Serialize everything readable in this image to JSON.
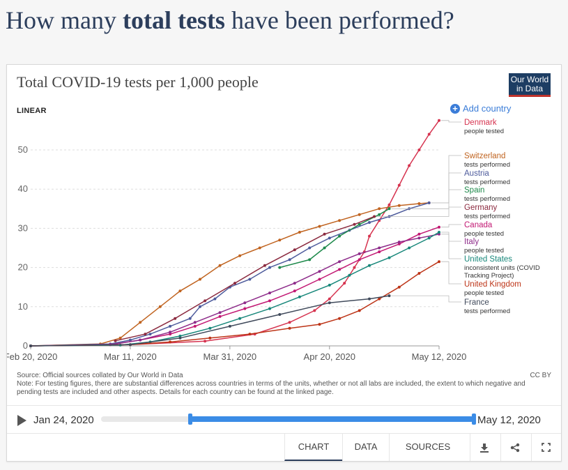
{
  "page": {
    "title_pre": "How many ",
    "title_bold": "total tests",
    "title_post": " have been performed?"
  },
  "chart_header": {
    "title": "Total COVID-19 tests per 1,000 people",
    "logo_line1": "Our World",
    "logo_line2": "in Data",
    "scale_label": "LINEAR",
    "add_country": "Add country"
  },
  "chart_data": {
    "type": "line",
    "title": "Total COVID-19 tests per 1,000 people",
    "x_axis_ticks": [
      "Feb 20, 2020",
      "Mar 11, 2020",
      "Mar 31, 2020",
      "Apr 20, 2020",
      "May 12, 2020"
    ],
    "y_axis_ticks": [
      "0",
      "10",
      "20",
      "30",
      "40",
      "50"
    ],
    "ylim": [
      0,
      58
    ],
    "series": [
      {
        "name": "Denmark",
        "unit": "people tested",
        "color": "#d6334f",
        "points": [
          [
            0,
            0
          ],
          [
            20,
            0.3
          ],
          [
            35,
            1.2
          ],
          [
            45,
            3
          ],
          [
            52,
            6
          ],
          [
            57,
            9
          ],
          [
            60,
            12
          ],
          [
            63,
            16
          ],
          [
            65,
            20
          ],
          [
            67,
            24
          ],
          [
            68,
            28
          ],
          [
            70,
            32
          ],
          [
            72,
            36
          ],
          [
            74,
            41
          ],
          [
            76,
            46
          ],
          [
            78,
            50
          ],
          [
            80,
            54
          ],
          [
            82,
            57.5
          ]
        ]
      },
      {
        "name": "Switzerland",
        "unit": "tests performed",
        "color": "#c0631f",
        "points": [
          [
            0,
            0
          ],
          [
            14,
            0.5
          ],
          [
            18,
            2
          ],
          [
            22,
            6
          ],
          [
            26,
            10
          ],
          [
            30,
            14
          ],
          [
            34,
            17
          ],
          [
            38,
            20.5
          ],
          [
            42,
            23
          ],
          [
            46,
            25
          ],
          [
            50,
            27
          ],
          [
            54,
            29
          ],
          [
            58,
            30.5
          ],
          [
            62,
            32
          ],
          [
            66,
            33.5
          ],
          [
            70,
            35
          ],
          [
            74,
            35.8
          ],
          [
            78,
            36.3
          ],
          [
            80,
            36.5
          ]
        ]
      },
      {
        "name": "Austria",
        "unit": "tests performed",
        "color": "#4d5b9c",
        "points": [
          [
            0,
            0
          ],
          [
            16,
            0.5
          ],
          [
            20,
            1.5
          ],
          [
            24,
            3
          ],
          [
            28,
            5
          ],
          [
            32,
            7
          ],
          [
            34,
            10
          ],
          [
            37,
            12
          ],
          [
            40,
            15
          ],
          [
            44,
            17
          ],
          [
            48,
            20
          ],
          [
            52,
            22
          ],
          [
            56,
            25
          ],
          [
            60,
            27.5
          ],
          [
            64,
            29.5
          ],
          [
            68,
            31.5
          ],
          [
            72,
            33
          ],
          [
            76,
            35
          ],
          [
            80,
            36.5
          ]
        ]
      },
      {
        "name": "Spain",
        "unit": "tests performed",
        "color": "#1f8a4c",
        "points": [
          [
            50,
            20
          ],
          [
            56,
            22
          ],
          [
            59,
            25
          ],
          [
            62,
            28
          ],
          [
            66,
            31
          ],
          [
            70,
            33.5
          ],
          [
            72,
            35
          ]
        ]
      },
      {
        "name": "Germany",
        "unit": "tests performed",
        "color": "#8b2a3f",
        "points": [
          [
            17,
            1.3
          ],
          [
            23,
            3
          ],
          [
            29,
            7
          ],
          [
            35,
            11.5
          ],
          [
            41,
            16
          ],
          [
            47,
            20.5
          ],
          [
            53,
            24.5
          ],
          [
            59,
            28.5
          ],
          [
            65,
            31
          ],
          [
            69,
            33
          ]
        ]
      },
      {
        "name": "Canada",
        "unit": "people tested",
        "color": "#c21873",
        "points": [
          [
            0,
            0
          ],
          [
            16,
            0.3
          ],
          [
            22,
            1.5
          ],
          [
            28,
            3
          ],
          [
            33,
            5
          ],
          [
            38,
            7.5
          ],
          [
            43,
            9.5
          ],
          [
            48,
            11.5
          ],
          [
            53,
            14
          ],
          [
            58,
            17
          ],
          [
            62,
            19.5
          ],
          [
            66,
            22
          ],
          [
            70,
            24
          ],
          [
            74,
            26
          ],
          [
            78,
            28.5
          ],
          [
            82,
            30.3
          ]
        ]
      },
      {
        "name": "Italy",
        "unit": "people tested",
        "color": "#8e2c8a",
        "points": [
          [
            0,
            0
          ],
          [
            16,
            0.3
          ],
          [
            22,
            1.5
          ],
          [
            28,
            3.5
          ],
          [
            33,
            6
          ],
          [
            38,
            8.5
          ],
          [
            43,
            11
          ],
          [
            48,
            13.5
          ],
          [
            53,
            16
          ],
          [
            58,
            19
          ],
          [
            62,
            21.5
          ],
          [
            66,
            23.5
          ],
          [
            70,
            25
          ],
          [
            74,
            26.5
          ],
          [
            78,
            27.5
          ],
          [
            82,
            28.5
          ]
        ]
      },
      {
        "name": "United States",
        "unit": "inconsistent units (COVID Tracking Project)",
        "color": "#17877a",
        "points": [
          [
            0,
            0
          ],
          [
            18,
            0.2
          ],
          [
            24,
            1
          ],
          [
            30,
            2.5
          ],
          [
            36,
            4.5
          ],
          [
            42,
            7
          ],
          [
            48,
            9.5
          ],
          [
            54,
            12.5
          ],
          [
            60,
            15.5
          ],
          [
            64,
            18
          ],
          [
            68,
            20.5
          ],
          [
            72,
            22.5
          ],
          [
            76,
            25
          ],
          [
            80,
            27.5
          ],
          [
            82,
            29
          ]
        ]
      },
      {
        "name": "United Kingdom",
        "unit": "people tested",
        "color": "#bd3417",
        "points": [
          [
            0,
            0
          ],
          [
            20,
            0.3
          ],
          [
            28,
            1
          ],
          [
            36,
            2
          ],
          [
            44,
            3
          ],
          [
            52,
            4.5
          ],
          [
            58,
            5.5
          ],
          [
            62,
            7
          ],
          [
            66,
            9
          ],
          [
            70,
            12
          ],
          [
            74,
            15
          ],
          [
            78,
            18.5
          ],
          [
            82,
            21.5
          ]
        ]
      },
      {
        "name": "France",
        "unit": "tests performed",
        "color": "#404a5b",
        "points": [
          [
            0,
            0
          ],
          [
            20,
            0.3
          ],
          [
            30,
            2
          ],
          [
            40,
            5
          ],
          [
            50,
            8
          ],
          [
            60,
            11
          ],
          [
            68,
            12
          ],
          [
            72,
            12.8
          ]
        ]
      }
    ]
  },
  "legend": [
    {
      "name": "Denmark",
      "sub": "people tested",
      "color": "#d6334f"
    },
    {
      "name": "Switzerland",
      "sub": "tests performed",
      "color": "#c0631f"
    },
    {
      "name": "Austria",
      "sub": "tests performed",
      "color": "#4d5b9c"
    },
    {
      "name": "Spain",
      "sub": "tests performed",
      "color": "#1f8a4c"
    },
    {
      "name": "Germany",
      "sub": "tests performed",
      "color": "#8b2a3f"
    },
    {
      "name": "Canada",
      "sub": "people tested",
      "color": "#c21873"
    },
    {
      "name": "Italy",
      "sub": "people tested",
      "color": "#8e2c8a"
    },
    {
      "name": "United States",
      "sub": "inconsistent units (COVID",
      "sub2": "Tracking Project)",
      "color": "#17877a"
    },
    {
      "name": "United Kingdom",
      "sub": "people tested",
      "color": "#bd3417"
    },
    {
      "name": "France",
      "sub": "tests performed",
      "color": "#404a5b"
    }
  ],
  "footer": {
    "source": "Source: Official sources collated by Our World in Data",
    "note": "Note: For testing figures, there are substantial differences across countries in terms of the units, whether or not all labs are included, the extent to which negative and pending tests are included and other aspects. Details for each country can be found at the linked page.",
    "license": "CC BY"
  },
  "timeline": {
    "start": "Jan 24, 2020",
    "end": "May 12, 2020",
    "range_start_fraction": 0.24,
    "range_end_fraction": 1.0
  },
  "tabs": [
    "CHART",
    "DATA",
    "SOURCES"
  ],
  "icons": [
    "download-icon",
    "share-icon",
    "fullscreen-icon"
  ]
}
